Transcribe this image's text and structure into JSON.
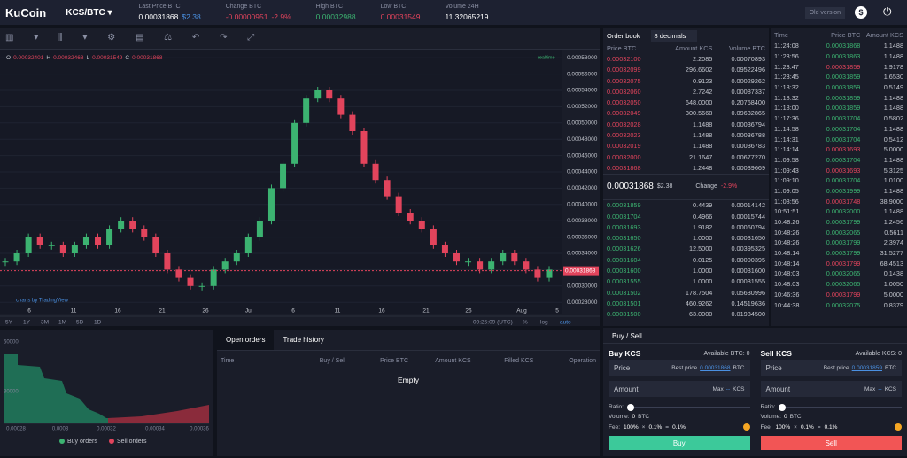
{
  "header": {
    "logo": "KuCoin",
    "pair": "KCS/BTC",
    "stats": [
      {
        "label": "Last Price BTC",
        "value": "0.00031868",
        "note": "$2.38"
      },
      {
        "label": "Change BTC",
        "value": "-0.00000951",
        "note": "-2.9%"
      },
      {
        "label": "High BTC",
        "value": "0.00032988"
      },
      {
        "label": "Low BTC",
        "value": "0.00031549"
      },
      {
        "label": "Volume 24H",
        "value": "11.32065219"
      }
    ],
    "old_version": "Old version"
  },
  "price_chart": {
    "type": "candlestick",
    "ohlc": [
      "O",
      "0.00032401",
      "H",
      "0.00032468",
      "L",
      "0.00031549",
      "C",
      "0.00031868"
    ],
    "realtime": "realtime",
    "closes": [
      0.00033,
      0.00034,
      0.00036,
      0.00035,
      0.00035,
      0.00034,
      0.00035,
      0.00036,
      0.00035,
      0.00037,
      0.00038,
      0.00037,
      0.00036,
      0.00034,
      0.00032,
      0.00031,
      0.0003,
      0.0003,
      0.00032,
      0.00033,
      0.00034,
      0.00036,
      0.00038,
      0.00042,
      0.00045,
      0.0005,
      0.00053,
      0.00054,
      0.00053,
      0.00051,
      0.00049,
      0.00045,
      0.00043,
      0.00041,
      0.00039,
      0.00038,
      0.00037,
      0.00035,
      0.00034,
      0.00033,
      0.00033,
      0.00032,
      0.00033,
      0.00034,
      0.00033,
      0.00032,
      0.00031,
      0.00032
    ],
    "ylim": [
      0.000265,
      0.00059
    ],
    "yticks": [
      {
        "value": 0.00028,
        "label": "0.00028000"
      },
      {
        "value": 0.0003,
        "label": "0.00030000"
      },
      {
        "value": 0.00032,
        "label": "0.00032000"
      },
      {
        "value": 0.00034,
        "label": "0.00034000"
      },
      {
        "value": 0.00036,
        "label": "0.00036000"
      },
      {
        "value": 0.00038,
        "label": "0.00038000"
      },
      {
        "value": 0.0004,
        "label": "0.00040000"
      },
      {
        "value": 0.00042,
        "label": "0.00042000"
      },
      {
        "value": 0.00044,
        "label": "0.00044000"
      },
      {
        "value": 0.00046,
        "label": "0.00046000"
      },
      {
        "value": 0.00048,
        "label": "0.00048000"
      },
      {
        "value": 0.0005,
        "label": "0.00050000"
      },
      {
        "value": 0.00052,
        "label": "0.00052000"
      },
      {
        "value": 0.00054,
        "label": "0.00054000"
      },
      {
        "value": 0.00056,
        "label": "0.00056000"
      },
      {
        "value": 0.00058,
        "label": "0.00058000"
      }
    ],
    "current_price": {
      "value": 0.00031868,
      "label": "0.00031868"
    },
    "x_labels": [
      "6",
      "11",
      "16",
      "21",
      "26",
      "Jul",
      "6",
      "11",
      "16",
      "21",
      "26",
      "Aug",
      "5"
    ],
    "ranges": [
      "5Y",
      "1Y",
      "3M",
      "1M",
      "5D",
      "1D"
    ],
    "time": "09:25:09 (UTC)",
    "percent": "%",
    "log": "log",
    "auto": "auto",
    "attribution": "charts by TradingView",
    "up_color": "#3cb371",
    "down_color": "#e2445c"
  },
  "order_book": {
    "title": "Order book",
    "decimals": "8 decimals",
    "columns": [
      "Price BTC",
      "Amount KCS",
      "Volume BTC"
    ],
    "asks": [
      [
        "0.00032100",
        "2.2085",
        "0.00070893"
      ],
      [
        "0.00032099",
        "296.6602",
        "0.09522496"
      ],
      [
        "0.00032075",
        "0.9123",
        "0.00029262"
      ],
      [
        "0.00032060",
        "2.7242",
        "0.00087337"
      ],
      [
        "0.00032050",
        "648.0000",
        "0.20768400"
      ],
      [
        "0.00032049",
        "300.5668",
        "0.09632865"
      ],
      [
        "0.00032028",
        "1.1488",
        "0.00036794"
      ],
      [
        "0.00032023",
        "1.1488",
        "0.00036788"
      ],
      [
        "0.00032019",
        "1.1488",
        "0.00036783"
      ],
      [
        "0.00032000",
        "21.1647",
        "0.00677270"
      ],
      [
        "0.00031868",
        "1.2448",
        "0.00039669"
      ]
    ],
    "mid": {
      "price": "0.00031868",
      "usd": "$2.38",
      "change_label": "Change",
      "change": "-2.9%"
    },
    "bids": [
      [
        "0.00031859",
        "0.4439",
        "0.00014142"
      ],
      [
        "0.00031704",
        "0.4966",
        "0.00015744"
      ],
      [
        "0.00031693",
        "1.9182",
        "0.00060794"
      ],
      [
        "0.00031650",
        "1.0000",
        "0.00031650"
      ],
      [
        "0.00031626",
        "12.5000",
        "0.00395325"
      ],
      [
        "0.00031604",
        "0.0125",
        "0.00000395"
      ],
      [
        "0.00031600",
        "1.0000",
        "0.00031600"
      ],
      [
        "0.00031555",
        "1.0000",
        "0.00031555"
      ],
      [
        "0.00031502",
        "178.7504",
        "0.05630996"
      ],
      [
        "0.00031501",
        "460.9262",
        "0.14519636"
      ],
      [
        "0.00031500",
        "63.0000",
        "0.01984500"
      ]
    ]
  },
  "trade_history": {
    "columns": [
      "Time",
      "Price BTC",
      "Amount KCS"
    ],
    "rows": [
      {
        "time": "11:24:08",
        "price": "0.00031868",
        "amount": "1.1488",
        "side": "buy"
      },
      {
        "time": "11:23:56",
        "price": "0.00031863",
        "amount": "1.1488",
        "side": "buy"
      },
      {
        "time": "11:23:47",
        "price": "0.00031859",
        "amount": "1.9178",
        "side": "sell"
      },
      {
        "time": "11:23:45",
        "price": "0.00031859",
        "amount": "1.6530",
        "side": "buy"
      },
      {
        "time": "11:18:32",
        "price": "0.00031859",
        "amount": "0.5149",
        "side": "buy"
      },
      {
        "time": "11:18:32",
        "price": "0.00031859",
        "amount": "1.1488",
        "side": "buy"
      },
      {
        "time": "11:18:00",
        "price": "0.00031859",
        "amount": "1.1488",
        "side": "buy"
      },
      {
        "time": "11:17:36",
        "price": "0.00031704",
        "amount": "0.5802",
        "side": "buy"
      },
      {
        "time": "11:14:58",
        "price": "0.00031704",
        "amount": "1.1488",
        "side": "buy"
      },
      {
        "time": "11:14:31",
        "price": "0.00031704",
        "amount": "0.5412",
        "side": "buy"
      },
      {
        "time": "11:14:14",
        "price": "0.00031693",
        "amount": "5.0000",
        "side": "sell"
      },
      {
        "time": "11:09:58",
        "price": "0.00031704",
        "amount": "1.1488",
        "side": "buy"
      },
      {
        "time": "11:09:43",
        "price": "0.00031693",
        "amount": "5.3125",
        "side": "sell"
      },
      {
        "time": "11:09:10",
        "price": "0.00031704",
        "amount": "1.0100",
        "side": "buy"
      },
      {
        "time": "11:09:05",
        "price": "0.00031999",
        "amount": "1.1488",
        "side": "buy"
      },
      {
        "time": "11:08:56",
        "price": "0.00031748",
        "amount": "38.9000",
        "side": "sell"
      },
      {
        "time": "10:51:51",
        "price": "0.00032000",
        "amount": "1.1488",
        "side": "buy"
      },
      {
        "time": "10:48:26",
        "price": "0.00031799",
        "amount": "1.2456",
        "side": "buy"
      },
      {
        "time": "10:48:26",
        "price": "0.00032065",
        "amount": "0.5611",
        "side": "buy"
      },
      {
        "time": "10:48:26",
        "price": "0.00031799",
        "amount": "2.3974",
        "side": "buy"
      },
      {
        "time": "10:48:14",
        "price": "0.00031799",
        "amount": "31.5277",
        "side": "buy"
      },
      {
        "time": "10:48:14",
        "price": "0.00031799",
        "amount": "68.4513",
        "side": "sell"
      },
      {
        "time": "10:48:03",
        "price": "0.00032065",
        "amount": "0.1438",
        "side": "buy"
      },
      {
        "time": "10:48:03",
        "price": "0.00032065",
        "amount": "1.0050",
        "side": "buy"
      },
      {
        "time": "10:46:36",
        "price": "0.00031799",
        "amount": "5.0000",
        "side": "sell"
      },
      {
        "time": "10:44:38",
        "price": "0.00032075",
        "amount": "0.8379",
        "side": "buy"
      }
    ]
  },
  "depth": {
    "y_labels": [
      "60000",
      "30000"
    ],
    "x_labels": [
      "0.00028",
      "0.0003",
      "0.00032",
      "0.00034",
      "0.00036"
    ],
    "legend": [
      "Buy orders",
      "Sell orders"
    ]
  },
  "orders": {
    "tabs": [
      "Open orders",
      "Trade history"
    ],
    "columns": [
      "Time",
      "Buy / Sell",
      "Price BTC",
      "Amount KCS",
      "Filled KCS",
      "Operation"
    ],
    "empty": "Empty"
  },
  "trade_form": {
    "tab": "Buy / Sell",
    "buy": {
      "title": "Buy KCS",
      "available": "Available BTC: 0",
      "price": "Price",
      "best_price": "Best price",
      "best_value": "0.00031868",
      "price_unit": "BTC",
      "amount": "Amount",
      "max": "Max",
      "max_value": "--",
      "amount_unit": "KCS",
      "ratio": "Ratio:",
      "volume": "Volume:",
      "volume_value": "0",
      "volume_unit": "BTC",
      "fee": "Fee:",
      "fee_parts": [
        "100%",
        "×",
        "0.1%",
        "=",
        "0.1%"
      ],
      "button": "Buy"
    },
    "sell": {
      "title": "Sell KCS",
      "available": "Available KCS: 0",
      "price": "Price",
      "best_price": "Best price",
      "best_value": "0.00031859",
      "price_unit": "BTC",
      "amount": "Amount",
      "max": "Max",
      "max_value": "--",
      "amount_unit": "KCS",
      "ratio": "Ratio:",
      "volume": "Volume:",
      "volume_value": "0",
      "volume_unit": "BTC",
      "fee": "Fee:",
      "fee_parts": [
        "100%",
        "×",
        "0.1%",
        "=",
        "0.1%"
      ],
      "button": "Sell"
    }
  }
}
